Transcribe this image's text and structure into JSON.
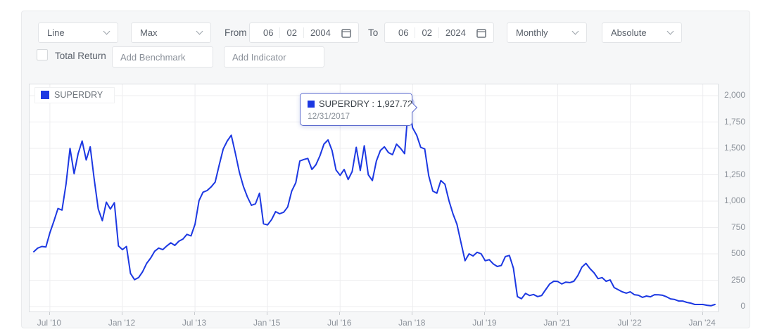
{
  "toolbar": {
    "chart_type": {
      "value": "Line"
    },
    "range": {
      "value": "Max"
    },
    "from_label": "From",
    "from_date": {
      "month": "06",
      "day": "02",
      "year": "2004"
    },
    "to_label": "To",
    "to_date": {
      "month": "06",
      "day": "02",
      "year": "2024"
    },
    "frequency": {
      "value": "Monthly"
    },
    "mode": {
      "value": "Absolute"
    },
    "total_return_label": "Total Return",
    "benchmark_placeholder": "Add Benchmark",
    "indicator_placeholder": "Add Indicator"
  },
  "legend": {
    "label": "SUPERDRY"
  },
  "tooltip": {
    "title": "SUPERDRY : 1,927.72",
    "date": "12/31/2017"
  },
  "colors": {
    "line": "#1c38e2",
    "tooltip_border": "#5d6cce",
    "halo": "rgba(116,134,228,0.38)",
    "grid": "#ededef"
  },
  "chart_data": {
    "type": "line",
    "series_name": "SUPERDRY",
    "frequency": "monthly",
    "start_month": "2010-03",
    "title": "",
    "xlabel": "",
    "ylabel": "",
    "ylim": [
      0,
      2000
    ],
    "grid": true,
    "legend_position": "top-left",
    "y_ticks": [
      0,
      250,
      500,
      750,
      1000,
      1250,
      1500,
      1750,
      2000
    ],
    "y_tick_labels": [
      "0",
      "250",
      "500",
      "750",
      "1,000",
      "1,250",
      "1,500",
      "1,750",
      "2,000"
    ],
    "x_ticks": [
      {
        "label": "Jul '10",
        "index": 4
      },
      {
        "label": "Jan '12",
        "index": 22
      },
      {
        "label": "Jul '13",
        "index": 40
      },
      {
        "label": "Jan '15",
        "index": 58
      },
      {
        "label": "Jul '16",
        "index": 76
      },
      {
        "label": "Jan '18",
        "index": 94
      },
      {
        "label": "Jul '19",
        "index": 112
      },
      {
        "label": "Jan '21",
        "index": 130
      },
      {
        "label": "Jul '22",
        "index": 148
      },
      {
        "label": "Jan '24",
        "index": 166
      }
    ],
    "highlight": {
      "index": 93,
      "date": "12/31/2017",
      "value": 1927.72
    },
    "values": [
      520,
      555,
      570,
      565,
      700,
      810,
      930,
      915,
      1160,
      1500,
      1260,
      1450,
      1570,
      1390,
      1515,
      1205,
      925,
      815,
      990,
      925,
      985,
      575,
      540,
      570,
      315,
      255,
      275,
      330,
      410,
      460,
      525,
      555,
      540,
      575,
      605,
      580,
      620,
      640,
      685,
      670,
      780,
      1005,
      1085,
      1100,
      1135,
      1180,
      1340,
      1495,
      1570,
      1625,
      1455,
      1275,
      1140,
      1040,
      960,
      975,
      1075,
      785,
      775,
      825,
      900,
      880,
      895,
      945,
      1095,
      1175,
      1380,
      1395,
      1405,
      1300,
      1345,
      1430,
      1540,
      1580,
      1480,
      1295,
      1245,
      1300,
      1205,
      1280,
      1510,
      1290,
      1525,
      1250,
      1195,
      1380,
      1480,
      1515,
      1460,
      1440,
      1540,
      1500,
      1450,
      1927.72,
      1695,
      1625,
      1510,
      1495,
      1240,
      1095,
      1075,
      1195,
      1160,
      1005,
      880,
      780,
      605,
      435,
      500,
      480,
      515,
      500,
      435,
      445,
      405,
      380,
      390,
      475,
      485,
      365,
      95,
      75,
      125,
      105,
      115,
      95,
      105,
      160,
      215,
      240,
      238,
      215,
      232,
      227,
      240,
      295,
      375,
      410,
      360,
      320,
      265,
      275,
      240,
      253,
      180,
      160,
      140,
      127,
      140,
      113,
      107,
      87,
      100,
      93,
      113,
      112,
      107,
      93,
      73,
      67,
      53,
      53,
      40,
      33,
      20,
      20,
      20,
      13,
      8,
      20
    ]
  }
}
